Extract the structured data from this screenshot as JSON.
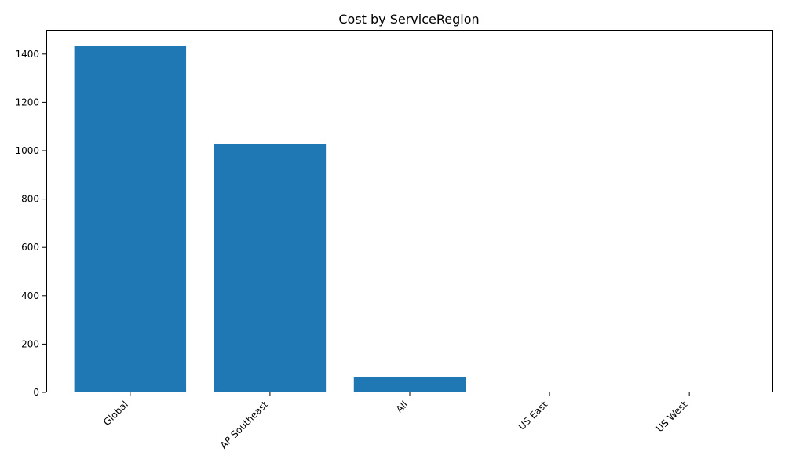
{
  "chart_data": {
    "type": "bar",
    "title": "Cost by ServiceRegion",
    "xlabel": "",
    "ylabel": "",
    "categories": [
      "Global",
      "AP Southeast",
      "All",
      "US East",
      "US West"
    ],
    "values": [
      1432,
      1029,
      65,
      0,
      0
    ],
    "ylim": [
      0,
      1500
    ],
    "yticks": [
      0,
      200,
      400,
      600,
      800,
      1000,
      1200,
      1400
    ],
    "bar_color": "#1f77b4",
    "grid": false,
    "legend": "none"
  }
}
